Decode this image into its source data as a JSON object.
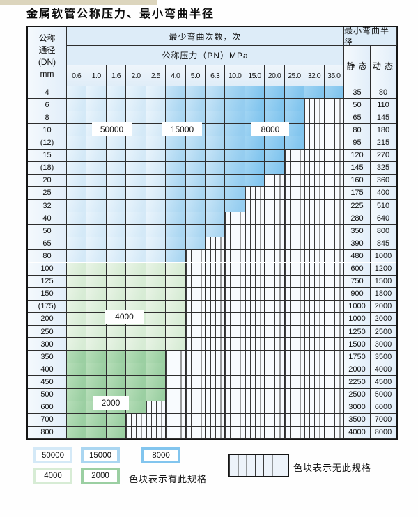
{
  "title": "金属软管公称压力、最小弯曲半径",
  "table": {
    "dn_header_lines": [
      "公称",
      "通径",
      "(DN)",
      "mm"
    ],
    "bend_times_header": "最少弯曲次数，次",
    "pressure_header": "公称压力（PN）MPa",
    "radius_header": "最小弯曲半径",
    "static_header": "静 态",
    "dynamic_header": "动 态",
    "pressures": [
      "0.6",
      "1.0",
      "1.6",
      "2.0",
      "2.5",
      "4.0",
      "5.0",
      "6.3",
      "10.0",
      "15.0",
      "20.0",
      "25.0",
      "32.0",
      "35.0"
    ],
    "rows": [
      {
        "dn": "4",
        "colored": 14,
        "scheme": "blue",
        "static": "35",
        "dynamic": "80"
      },
      {
        "dn": "6",
        "colored": 12,
        "scheme": "blue",
        "static": "50",
        "dynamic": "110"
      },
      {
        "dn": "8",
        "colored": 12,
        "scheme": "blue",
        "static": "65",
        "dynamic": "145"
      },
      {
        "dn": "10",
        "colored": 12,
        "scheme": "blue",
        "static": "80",
        "dynamic": "180"
      },
      {
        "dn": "(12)",
        "colored": 12,
        "scheme": "blue",
        "static": "95",
        "dynamic": "215"
      },
      {
        "dn": "15",
        "colored": 11,
        "scheme": "blue",
        "static": "120",
        "dynamic": "270"
      },
      {
        "dn": "(18)",
        "colored": 11,
        "scheme": "blue",
        "static": "145",
        "dynamic": "325"
      },
      {
        "dn": "20",
        "colored": 10,
        "scheme": "blue",
        "static": "160",
        "dynamic": "360"
      },
      {
        "dn": "25",
        "colored": 9,
        "scheme": "blue",
        "static": "175",
        "dynamic": "400"
      },
      {
        "dn": "32",
        "colored": 9,
        "scheme": "blue",
        "static": "225",
        "dynamic": "510"
      },
      {
        "dn": "40",
        "colored": 8,
        "scheme": "blue",
        "static": "280",
        "dynamic": "640"
      },
      {
        "dn": "50",
        "colored": 8,
        "scheme": "blue",
        "static": "350",
        "dynamic": "800"
      },
      {
        "dn": "65",
        "colored": 7,
        "scheme": "blue",
        "static": "390",
        "dynamic": "845"
      },
      {
        "dn": "80",
        "colored": 6,
        "scheme": "blue",
        "static": "480",
        "dynamic": "1000"
      },
      {
        "dn": "100",
        "colored": 6,
        "scheme": "g4000",
        "static": "600",
        "dynamic": "1200"
      },
      {
        "dn": "125",
        "colored": 6,
        "scheme": "g4000",
        "static": "750",
        "dynamic": "1500"
      },
      {
        "dn": "150",
        "colored": 6,
        "scheme": "g4000",
        "static": "900",
        "dynamic": "1800"
      },
      {
        "dn": "(175)",
        "colored": 6,
        "scheme": "g4000",
        "static": "1000",
        "dynamic": "2000"
      },
      {
        "dn": "200",
        "colored": 6,
        "scheme": "g4000",
        "static": "1000",
        "dynamic": "2000"
      },
      {
        "dn": "250",
        "colored": 6,
        "scheme": "g4000",
        "static": "1250",
        "dynamic": "2500"
      },
      {
        "dn": "300",
        "colored": 6,
        "scheme": "g4000",
        "static": "1500",
        "dynamic": "3000"
      },
      {
        "dn": "350",
        "colored": 5,
        "scheme": "g2000",
        "static": "1750",
        "dynamic": "3500"
      },
      {
        "dn": "400",
        "colored": 5,
        "scheme": "g2000",
        "static": "2000",
        "dynamic": "4000"
      },
      {
        "dn": "450",
        "colored": 5,
        "scheme": "g2000",
        "static": "2250",
        "dynamic": "4500"
      },
      {
        "dn": "500",
        "colored": 5,
        "scheme": "g2000",
        "static": "2500",
        "dynamic": "5000"
      },
      {
        "dn": "600",
        "colored": 4,
        "scheme": "g2000",
        "static": "3000",
        "dynamic": "6000"
      },
      {
        "dn": "700",
        "colored": 3,
        "scheme": "g2000",
        "static": "3500",
        "dynamic": "7000"
      },
      {
        "dn": "800",
        "colored": 3,
        "scheme": "g2000",
        "static": "4000",
        "dynamic": "8000"
      }
    ]
  },
  "count_labels": [
    "50000",
    "15000",
    "8000",
    "4000",
    "2000"
  ],
  "legend": {
    "items_row1": [
      {
        "label": "50000",
        "color": "c50000"
      },
      {
        "label": "15000",
        "color": "c15000"
      },
      {
        "label": "8000",
        "color": "c8000"
      }
    ],
    "items_row2": [
      {
        "label": "4000",
        "color": "c4000"
      },
      {
        "label": "2000",
        "color": "c2000"
      }
    ],
    "has_spec_note": "色块表示有此规格",
    "no_spec_note": "色块表示无此规格"
  },
  "colors": {
    "c50000": {
      "hi": "#e9f4fc",
      "base": "#d4e9f7"
    },
    "c15000": {
      "hi": "#c8e5f8",
      "base": "#aad6f1"
    },
    "c8000m": {
      "hi": "#aedaf4",
      "base": "#95cdf0"
    },
    "c8000": {
      "hi": "#a0d4f3",
      "base": "#82c5ee"
    },
    "c4000": {
      "hi": "#e9f4e6",
      "base": "#d7ecd5"
    },
    "c2000": {
      "hi": "#b7deb9",
      "base": "#9bcfa2"
    },
    "grid": "#2e2e2e",
    "hatch_line": "#3c3c3c",
    "hatch_bg": "#f8fbfe",
    "head_bg": "#ddecf8",
    "side_hi": "#f4f9fd",
    "side_lo": "#e2eef9"
  }
}
